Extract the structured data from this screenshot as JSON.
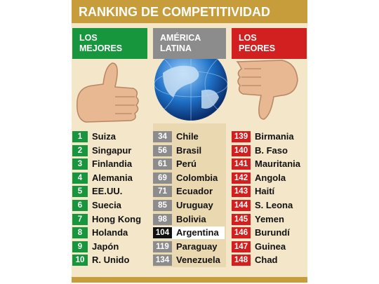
{
  "title": "RANKING DE COMPETITIVIDAD",
  "columns": [
    {
      "header": [
        "LOS",
        "MEJORES"
      ],
      "color": "#17963e",
      "rows": [
        {
          "rank": 1,
          "name": "Suiza"
        },
        {
          "rank": 2,
          "name": "Singapur"
        },
        {
          "rank": 3,
          "name": "Finlandia"
        },
        {
          "rank": 4,
          "name": "Alemania"
        },
        {
          "rank": 5,
          "name": "EE.UU."
        },
        {
          "rank": 6,
          "name": "Suecia"
        },
        {
          "rank": 7,
          "name": "Hong Kong"
        },
        {
          "rank": 8,
          "name": "Holanda"
        },
        {
          "rank": 9,
          "name": "Japón"
        },
        {
          "rank": 10,
          "name": "R. Unido"
        }
      ]
    },
    {
      "header": [
        "AMÉRICA",
        "LATINA"
      ],
      "color": "#8c8c8c",
      "rows": [
        {
          "rank": 34,
          "name": "Chile"
        },
        {
          "rank": 56,
          "name": "Brasil"
        },
        {
          "rank": 61,
          "name": "Perú"
        },
        {
          "rank": 69,
          "name": "Colombia"
        },
        {
          "rank": 71,
          "name": "Ecuador"
        },
        {
          "rank": 85,
          "name": "Uruguay"
        },
        {
          "rank": 98,
          "name": "Bolivia"
        },
        {
          "rank": 104,
          "name": "Argentina",
          "highlighted": true
        },
        {
          "rank": 119,
          "name": "Paraguay"
        },
        {
          "rank": 134,
          "name": "Venezuela"
        }
      ]
    },
    {
      "header": [
        "LOS",
        "PEORES"
      ],
      "color": "#d21f1f",
      "rows": [
        {
          "rank": 139,
          "name": "Birmania"
        },
        {
          "rank": 140,
          "name": "B. Faso"
        },
        {
          "rank": 141,
          "name": "Mauritania"
        },
        {
          "rank": 142,
          "name": "Angola"
        },
        {
          "rank": 143,
          "name": "Haití"
        },
        {
          "rank": 144,
          "name": "S. Leona"
        },
        {
          "rank": 145,
          "name": "Yemen"
        },
        {
          "rank": 146,
          "name": "Burundí"
        },
        {
          "rank": 147,
          "name": "Guinea"
        },
        {
          "rank": 148,
          "name": "Chad"
        }
      ]
    }
  ]
}
